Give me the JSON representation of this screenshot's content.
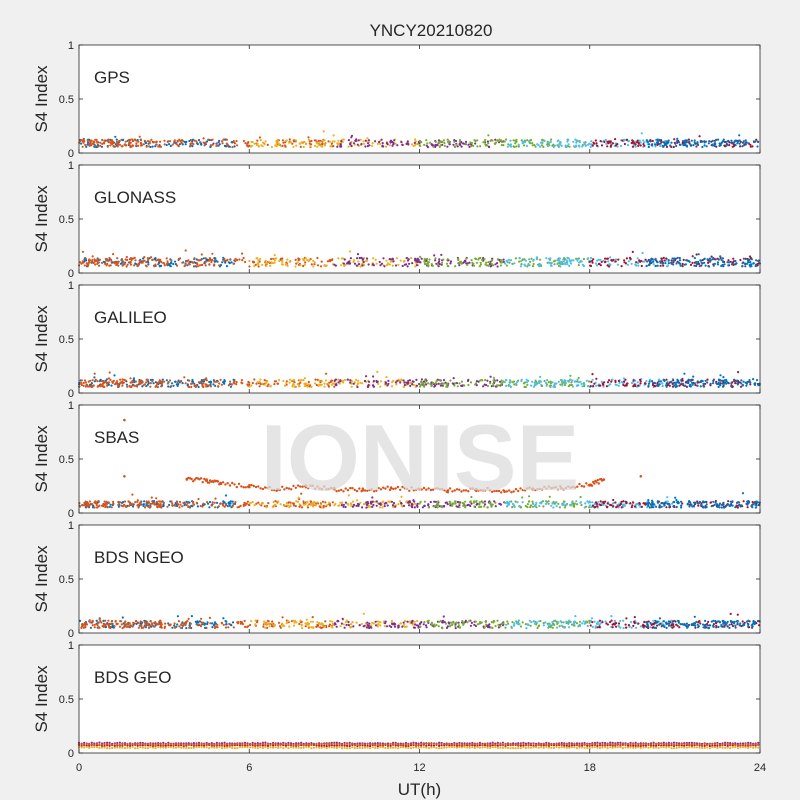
{
  "figure": {
    "title": "YNCY20210820",
    "watermark": "IONISE",
    "colors": {
      "background": "#f0f0f0",
      "axes_bg": "#ffffff",
      "axis": "#262626",
      "series_palette": [
        "#0072BD",
        "#D95319",
        "#EDB120",
        "#7E2F8E",
        "#77AC30",
        "#4DBEEE",
        "#A2142F"
      ],
      "watermark": "#dcdcdc"
    }
  },
  "chart_data": [
    {
      "type": "scatter",
      "panel_label": "GPS",
      "ylabel": "S4 Index",
      "xlabel": "",
      "xlim": [
        0,
        24
      ],
      "ylim": [
        0,
        1
      ],
      "xticks": [],
      "yticks": [
        0,
        0.5,
        1
      ],
      "ytick_labels": [
        "0",
        "0.5",
        "1"
      ],
      "baseline": 0.09,
      "spread": 0.035
    },
    {
      "type": "scatter",
      "panel_label": "GLONASS",
      "ylabel": "S4 Index",
      "xlabel": "",
      "xlim": [
        0,
        24
      ],
      "ylim": [
        0,
        1
      ],
      "xticks": [],
      "yticks": [
        0,
        0.5,
        1
      ],
      "ytick_labels": [
        "0",
        "0.5",
        "1"
      ],
      "baseline": 0.1,
      "spread": 0.04
    },
    {
      "type": "scatter",
      "panel_label": "GALILEO",
      "ylabel": "S4 Index",
      "xlabel": "",
      "xlim": [
        0,
        24
      ],
      "ylim": [
        0,
        1
      ],
      "xticks": [],
      "yticks": [
        0,
        0.5,
        1
      ],
      "ytick_labels": [
        "0",
        "0.5",
        "1"
      ],
      "baseline": 0.09,
      "spread": 0.035
    },
    {
      "type": "scatter",
      "panel_label": "SBAS",
      "ylabel": "S4 Index",
      "xlabel": "",
      "xlim": [
        0,
        24
      ],
      "ylim": [
        0,
        1
      ],
      "xticks": [],
      "yticks": [
        0,
        0.5,
        1
      ],
      "ytick_labels": [
        "0",
        "0.5",
        "1"
      ],
      "baseline": 0.08,
      "spread": 0.03,
      "extra_series": {
        "color": "#D95319",
        "points": [
          [
            1.6,
            0.86
          ],
          [
            1.6,
            0.34
          ],
          [
            3.8,
            0.31
          ],
          [
            4.5,
            0.3
          ],
          [
            5.0,
            0.27
          ],
          [
            6.0,
            0.24
          ],
          [
            7.0,
            0.22
          ],
          [
            8.0,
            0.24
          ],
          [
            9.0,
            0.22
          ],
          [
            10.0,
            0.21
          ],
          [
            11.0,
            0.23
          ],
          [
            12.0,
            0.22
          ],
          [
            13.0,
            0.21
          ],
          [
            14.0,
            0.22
          ],
          [
            15.0,
            0.2
          ],
          [
            16.0,
            0.22
          ],
          [
            17.0,
            0.23
          ],
          [
            18.0,
            0.26
          ],
          [
            18.5,
            0.31
          ],
          [
            19.8,
            0.34
          ]
        ]
      }
    },
    {
      "type": "scatter",
      "panel_label": "BDS NGEO",
      "ylabel": "S4 Index",
      "xlabel": "",
      "xlim": [
        0,
        24
      ],
      "ylim": [
        0,
        1
      ],
      "xticks": [],
      "yticks": [
        0,
        0.5,
        1
      ],
      "ytick_labels": [
        "0",
        "0.5",
        "1"
      ],
      "baseline": 0.08,
      "spread": 0.035
    },
    {
      "type": "scatter",
      "panel_label": "BDS GEO",
      "ylabel": "S4 Index",
      "xlabel": "UT(h)",
      "xlim": [
        0,
        24
      ],
      "ylim": [
        0,
        1
      ],
      "xticks": [
        0,
        6,
        12,
        18,
        24
      ],
      "xtick_labels": [
        "0",
        "6",
        "12",
        "18",
        "24"
      ],
      "yticks": [
        0,
        0.5,
        1
      ],
      "ytick_labels": [
        "0",
        "0.5",
        "1"
      ],
      "bands": [
        0.09,
        0.07,
        0.05,
        0.08
      ]
    }
  ]
}
